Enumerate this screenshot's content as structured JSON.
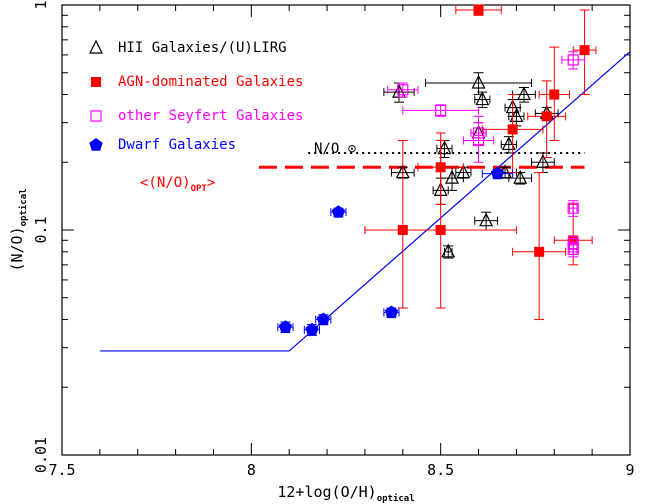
{
  "chart_data": {
    "type": "scatter",
    "xlabel": "12+log(O/H)",
    "xlabel_sub": "optical",
    "ylabel": "(N/O)",
    "ylabel_sub": "optical",
    "xlim": [
      7.5,
      9.0
    ],
    "ylim": [
      0.01,
      1.0
    ],
    "yscale": "log",
    "x_ticks": [
      "7.5",
      "8",
      "8.5",
      "9"
    ],
    "y_ticks": [
      "0.01",
      "0.1",
      "1"
    ],
    "legend_placement": "top-left",
    "series": [
      {
        "name": "HII Galaxies/(U)LIRG",
        "marker": "triangle-open",
        "color": "#000000",
        "points": [
          {
            "x": 8.39,
            "y": 0.41,
            "xerr": 0.04,
            "yerr": [
              0.37,
              0.45
            ]
          },
          {
            "x": 8.4,
            "y": 0.18,
            "xerr": 0.03,
            "yerr": [
              0.17,
              0.19
            ]
          },
          {
            "x": 8.5,
            "y": 0.15,
            "xerr": 0.02,
            "yerr": [
              0.13,
              0.17
            ]
          },
          {
            "x": 8.51,
            "y": 0.23,
            "xerr": 0.02,
            "yerr": [
              0.21,
              0.25
            ]
          },
          {
            "x": 8.52,
            "y": 0.08,
            "xerr": 0.01,
            "yerr": [
              0.075,
              0.085
            ]
          },
          {
            "x": 8.53,
            "y": 0.17,
            "xerr": 0.03,
            "yerr": [
              0.15,
              0.19
            ]
          },
          {
            "x": 8.56,
            "y": 0.18,
            "xerr": 0.02,
            "yerr": [
              0.17,
              0.19
            ]
          },
          {
            "x": 8.6,
            "y": 0.45,
            "xerr": 0.14,
            "yerr": [
              0.4,
              0.5
            ]
          },
          {
            "x": 8.6,
            "y": 0.27,
            "xerr": 0.02,
            "yerr": [
              0.25,
              0.3
            ]
          },
          {
            "x": 8.61,
            "y": 0.38,
            "xerr": 0.02,
            "yerr": [
              0.35,
              0.41
            ]
          },
          {
            "x": 8.62,
            "y": 0.11,
            "xerr": 0.03,
            "yerr": [
              0.1,
              0.12
            ]
          },
          {
            "x": 8.67,
            "y": 0.18,
            "xerr": 0.03,
            "yerr": [
              0.17,
              0.19
            ]
          },
          {
            "x": 8.68,
            "y": 0.24,
            "xerr": 0.02,
            "yerr": [
              0.22,
              0.26
            ]
          },
          {
            "x": 8.69,
            "y": 0.35,
            "xerr": 0.02,
            "yerr": [
              0.32,
              0.38
            ]
          },
          {
            "x": 8.7,
            "y": 0.32,
            "xerr": 0.02,
            "yerr": [
              0.29,
              0.35
            ]
          },
          {
            "x": 8.71,
            "y": 0.17,
            "xerr": 0.03,
            "yerr": [
              0.16,
              0.18
            ]
          },
          {
            "x": 8.72,
            "y": 0.4,
            "xerr": 0.03,
            "yerr": [
              0.37,
              0.43
            ]
          },
          {
            "x": 8.77,
            "y": 0.2,
            "xerr": 0.03,
            "yerr": [
              0.18,
              0.22
            ]
          },
          {
            "x": 8.78,
            "y": 0.33,
            "xerr": 0.03,
            "yerr": [
              0.31,
              0.35
            ]
          }
        ]
      },
      {
        "name": "AGN-dominated Galaxies",
        "marker": "square-filled",
        "color": "#ff0000",
        "points": [
          {
            "x": 8.6,
            "y": 0.95,
            "xerr": 0.06,
            "yerr": [
              0.9,
              1.0
            ]
          },
          {
            "x": 8.4,
            "y": 0.1,
            "xerr": 0.1,
            "yerr": [
              0.045,
              0.25
            ]
          },
          {
            "x": 8.5,
            "y": 0.1,
            "xerr": 0.2,
            "yerr": [
              0.045,
              0.25
            ]
          },
          {
            "x": 8.5,
            "y": 0.19,
            "xerr": 0.06,
            "yerr": [
              0.13,
              0.27
            ]
          },
          {
            "x": 8.69,
            "y": 0.28,
            "xerr": 0.08,
            "yerr": [
              0.18,
              0.4
            ]
          },
          {
            "x": 8.76,
            "y": 0.08,
            "xerr": 0.07,
            "yerr": [
              0.04,
              0.18
            ]
          },
          {
            "x": 8.78,
            "y": 0.32,
            "xerr": 0.05,
            "yerr": [
              0.21,
              0.46
            ]
          },
          {
            "x": 8.8,
            "y": 0.4,
            "xerr": 0.04,
            "yerr": [
              0.25,
              0.65
            ]
          },
          {
            "x": 8.85,
            "y": 0.09,
            "xerr": 0.05,
            "yerr": [
              0.07,
              0.13
            ]
          },
          {
            "x": 8.88,
            "y": 0.63,
            "xerr": 0.03,
            "yerr": [
              0.4,
              0.95
            ]
          }
        ]
      },
      {
        "name": "other Seyfert Galaxies",
        "marker": "square-open",
        "color": "#ff00ff",
        "points": [
          {
            "x": 8.4,
            "y": 0.42,
            "xerr": 0.04,
            "yerr": [
              0.39,
              0.45
            ]
          },
          {
            "x": 8.5,
            "y": 0.34,
            "xerr": 0.1,
            "yerr": [
              0.32,
              0.36
            ]
          },
          {
            "x": 8.6,
            "y": 0.25,
            "xerr": 0.04,
            "yerr": [
              0.2,
              0.32
            ]
          },
          {
            "x": 8.6,
            "y": 0.27,
            "xerr": 0.02,
            "yerr": [
              0.24,
              0.3
            ]
          },
          {
            "x": 8.85,
            "y": 0.57,
            "xerr": 0.03,
            "yerr": [
              0.52,
              0.62
            ]
          },
          {
            "x": 8.85,
            "y": 0.125,
            "xerr": 0.01,
            "yerr": [
              0.115,
              0.135
            ]
          },
          {
            "x": 8.85,
            "y": 0.087,
            "xerr": 0.01,
            "yerr": [
              0.08,
              0.094
            ]
          },
          {
            "x": 8.85,
            "y": 0.082,
            "xerr": 0.01,
            "yerr": [
              0.076,
              0.088
            ]
          }
        ]
      },
      {
        "name": "Dwarf Galaxies",
        "marker": "pentagon-filled",
        "color": "#0000ff",
        "points": [
          {
            "x": 8.09,
            "y": 0.037,
            "xerr": 0.02,
            "yerr": [
              0.035,
              0.039
            ]
          },
          {
            "x": 8.16,
            "y": 0.036,
            "xerr": 0.02,
            "yerr": [
              0.034,
              0.038
            ]
          },
          {
            "x": 8.19,
            "y": 0.04,
            "xerr": 0.02,
            "yerr": [
              0.038,
              0.042
            ]
          },
          {
            "x": 8.23,
            "y": 0.12,
            "xerr": 0.02,
            "yerr": [
              0.115,
              0.125
            ]
          },
          {
            "x": 8.37,
            "y": 0.043,
            "xerr": 0.02,
            "yerr": [
              0.041,
              0.045
            ]
          },
          {
            "x": 8.65,
            "y": 0.178,
            "xerr": 0.04,
            "yerr": [
              0.17,
              0.186
            ]
          }
        ]
      }
    ],
    "fit_line": {
      "color": "#0000ff",
      "points": [
        [
          7.6,
          0.029
        ],
        [
          8.1,
          0.029
        ],
        [
          9.0,
          0.62
        ]
      ]
    },
    "reference_lines": [
      {
        "label": "N/O ⊙",
        "y": 0.22,
        "x_range": [
          8.15,
          8.88
        ],
        "style": "dotted",
        "color": "#000000"
      },
      {
        "label": "<(N/O)",
        "label_sub": "OPT",
        "label_end": ">",
        "y": 0.19,
        "x_range": [
          8.02,
          8.88
        ],
        "style": "dashed",
        "color": "#ff0000"
      }
    ]
  }
}
